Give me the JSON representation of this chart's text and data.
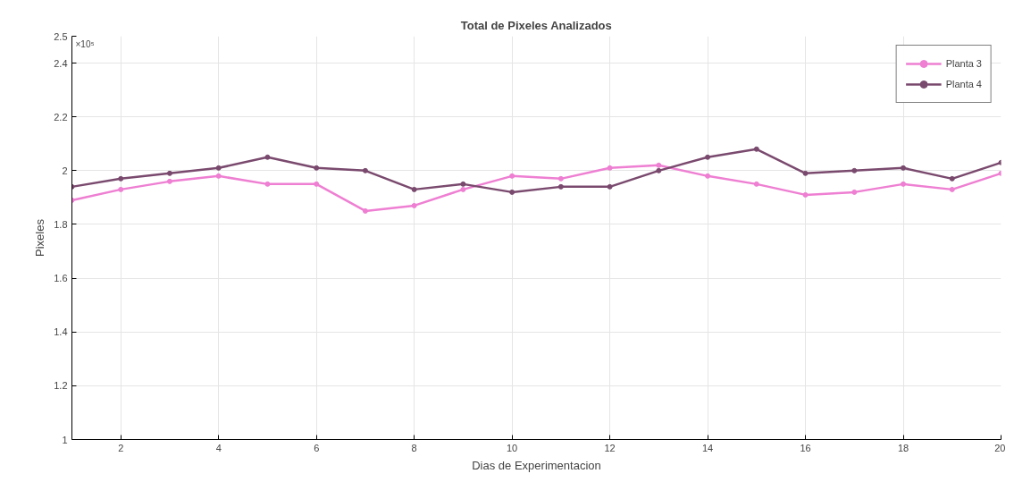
{
  "chart_data": {
    "type": "line",
    "title": "Total de Pixeles Analizados",
    "xlabel": "Dias de Experimentacion",
    "ylabel": "Pixeles",
    "annotations": [
      "×10⁵"
    ],
    "x": [
      1,
      2,
      3,
      4,
      5,
      6,
      7,
      8,
      9,
      10,
      11,
      12,
      13,
      14,
      15,
      16,
      17,
      18,
      19,
      20
    ],
    "series": [
      {
        "name": "Planta 3",
        "color": "#ee7fd2",
        "values": [
          1.89,
          1.93,
          1.96,
          1.98,
          1.95,
          1.95,
          1.85,
          1.87,
          1.93,
          1.98,
          1.97,
          2.01,
          2.02,
          1.98,
          1.95,
          1.91,
          1.92,
          1.95,
          1.93,
          1.99
        ]
      },
      {
        "name": "Planta 4",
        "color": "#7a4a6e",
        "values": [
          1.94,
          1.97,
          1.99,
          2.01,
          2.05,
          2.01,
          2.0,
          1.93,
          1.95,
          1.92,
          1.94,
          1.94,
          2.0,
          2.05,
          2.08,
          1.99,
          2.0,
          2.01,
          1.97,
          2.03
        ]
      }
    ],
    "xlim": [
      1,
      20
    ],
    "xticks": [
      2,
      4,
      6,
      8,
      10,
      12,
      14,
      16,
      18,
      20
    ],
    "ylim": [
      1,
      2.5
    ],
    "yticks": [
      1,
      1.2,
      1.4,
      1.6,
      1.8,
      2,
      2.2,
      2.4,
      2.5
    ],
    "grid": true,
    "legend": "top right",
    "marker": "circle",
    "line_style": "solid"
  }
}
